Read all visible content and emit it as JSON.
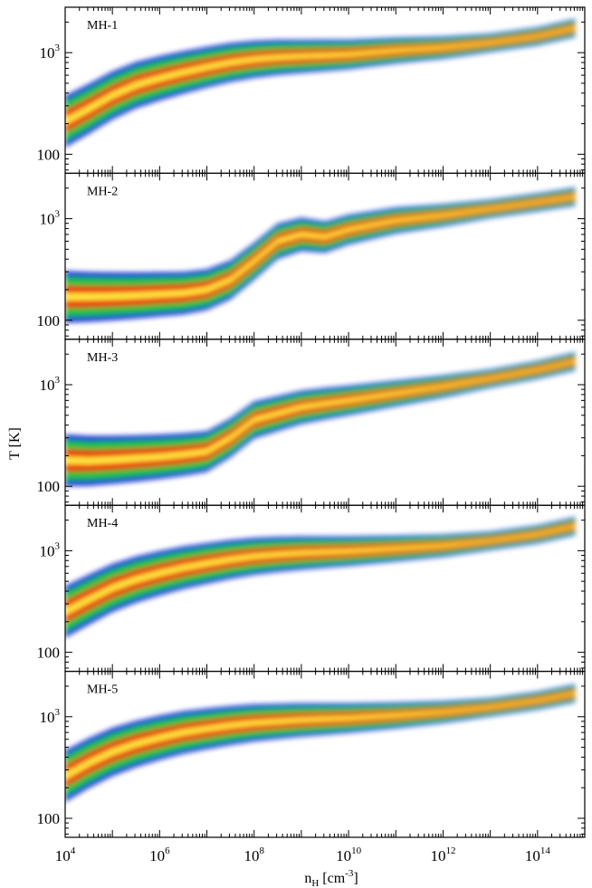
{
  "figure": {
    "ylabel": "T [K]",
    "xlabel_main": "n",
    "xlabel_sub": "H",
    "xlabel_unit": " [cm",
    "xlabel_exp": "-3",
    "xlabel_close": "]"
  },
  "chart_data": {
    "type": "heatmap",
    "x_scale": "log",
    "y_scale": "log",
    "xlim": [
      10000,
      1000000000000000
    ],
    "ylim": [
      65,
      2800
    ],
    "x_ticks": [
      {
        "value": 10000,
        "base": "10",
        "exp": "4"
      },
      {
        "value": 1000000,
        "base": "10",
        "exp": "6"
      },
      {
        "value": 100000000,
        "base": "10",
        "exp": "8"
      },
      {
        "value": 10000000000,
        "base": "10",
        "exp": "10"
      },
      {
        "value": 1000000000000,
        "base": "10",
        "exp": "12"
      },
      {
        "value": 100000000000000,
        "base": "10",
        "exp": "14"
      }
    ],
    "y_ticks": [
      {
        "value": 100,
        "label": "100"
      },
      {
        "value": 1000,
        "label": "10",
        "exp": "3"
      }
    ],
    "colormap": [
      "#1020d0",
      "#20c040",
      "#ee2000",
      "#ffee40"
    ],
    "panels": [
      {
        "label": "MH-1",
        "ridge": [
          [
            4,
            210
          ],
          [
            4.5,
            280
          ],
          [
            5,
            380
          ],
          [
            5.5,
            480
          ],
          [
            6,
            560
          ],
          [
            6.5,
            640
          ],
          [
            7,
            720
          ],
          [
            7.5,
            800
          ],
          [
            8,
            860
          ],
          [
            8.5,
            900
          ],
          [
            9,
            920
          ],
          [
            9.5,
            940
          ],
          [
            10,
            960
          ],
          [
            11,
            1050
          ],
          [
            12,
            1120
          ],
          [
            13,
            1250
          ],
          [
            14,
            1450
          ],
          [
            14.8,
            1750
          ]
        ]
      },
      {
        "label": "MH-2",
        "ridge": [
          [
            4,
            170
          ],
          [
            4.5,
            170
          ],
          [
            5,
            172
          ],
          [
            5.5,
            175
          ],
          [
            6,
            180
          ],
          [
            6.5,
            185
          ],
          [
            7,
            200
          ],
          [
            7.5,
            250
          ],
          [
            8,
            380
          ],
          [
            8.5,
            600
          ],
          [
            9,
            700
          ],
          [
            9.5,
            660
          ],
          [
            10,
            780
          ],
          [
            11,
            960
          ],
          [
            12,
            1080
          ],
          [
            13,
            1250
          ],
          [
            14,
            1450
          ],
          [
            14.8,
            1650
          ]
        ]
      },
      {
        "label": "MH-3",
        "ridge": [
          [
            4,
            180
          ],
          [
            4.5,
            178
          ],
          [
            5,
            182
          ],
          [
            5.5,
            188
          ],
          [
            6,
            195
          ],
          [
            6.5,
            205
          ],
          [
            7,
            220
          ],
          [
            7.5,
            300
          ],
          [
            8,
            450
          ],
          [
            8.5,
            520
          ],
          [
            9,
            600
          ],
          [
            9.5,
            650
          ],
          [
            10,
            700
          ],
          [
            11,
            820
          ],
          [
            12,
            960
          ],
          [
            13,
            1150
          ],
          [
            14,
            1400
          ],
          [
            14.8,
            1700
          ]
        ]
      },
      {
        "label": "MH-4",
        "ridge": [
          [
            4,
            250
          ],
          [
            4.5,
            330
          ],
          [
            5,
            430
          ],
          [
            5.5,
            520
          ],
          [
            6,
            600
          ],
          [
            6.5,
            680
          ],
          [
            7,
            750
          ],
          [
            7.5,
            820
          ],
          [
            8,
            880
          ],
          [
            8.5,
            920
          ],
          [
            9,
            950
          ],
          [
            9.5,
            970
          ],
          [
            10,
            990
          ],
          [
            11,
            1050
          ],
          [
            12,
            1120
          ],
          [
            13,
            1250
          ],
          [
            14,
            1450
          ],
          [
            14.8,
            1750
          ]
        ]
      },
      {
        "label": "MH-5",
        "ridge": [
          [
            4,
            260
          ],
          [
            4.5,
            350
          ],
          [
            5,
            450
          ],
          [
            5.5,
            540
          ],
          [
            6,
            620
          ],
          [
            6.5,
            700
          ],
          [
            7,
            760
          ],
          [
            7.5,
            820
          ],
          [
            8,
            870
          ],
          [
            8.5,
            900
          ],
          [
            9,
            930
          ],
          [
            9.5,
            950
          ],
          [
            10,
            970
          ],
          [
            11,
            1030
          ],
          [
            12,
            1110
          ],
          [
            13,
            1240
          ],
          [
            14,
            1440
          ],
          [
            14.8,
            1700
          ]
        ]
      }
    ]
  }
}
